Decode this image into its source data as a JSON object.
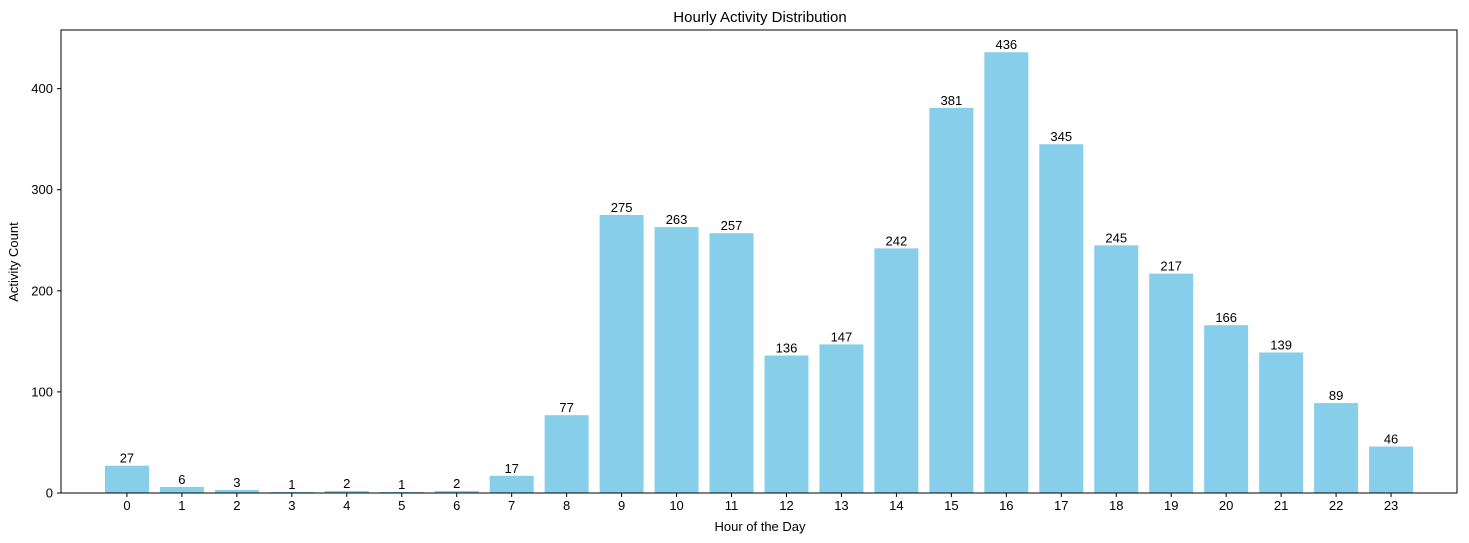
{
  "chart_data": {
    "type": "bar",
    "title": "Hourly Activity Distribution",
    "xlabel": "Hour of the Day",
    "ylabel": "Activity Count",
    "categories": [
      "0",
      "1",
      "2",
      "3",
      "4",
      "5",
      "6",
      "7",
      "8",
      "9",
      "10",
      "11",
      "12",
      "13",
      "14",
      "15",
      "16",
      "17",
      "18",
      "19",
      "20",
      "21",
      "22",
      "23"
    ],
    "values": [
      27,
      6,
      3,
      1,
      2,
      1,
      2,
      17,
      77,
      275,
      263,
      257,
      136,
      147,
      242,
      381,
      436,
      345,
      245,
      217,
      166,
      139,
      89,
      46
    ],
    "ylim": [
      0,
      458
    ],
    "yticks": [
      0,
      100,
      200,
      300,
      400
    ],
    "bar_color": "#87ceeb",
    "grid": false,
    "legend": false
  }
}
